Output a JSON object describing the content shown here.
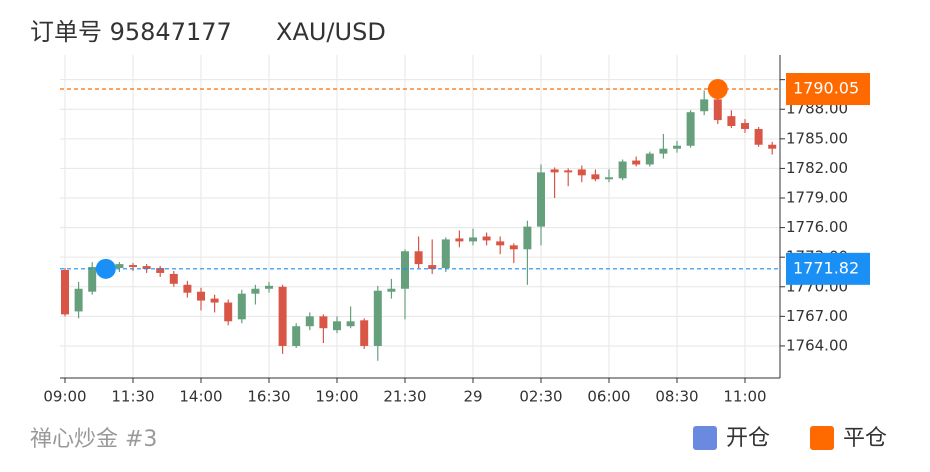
{
  "header": {
    "order": "订单号 95847177",
    "symbol": "XAU/USD"
  },
  "chart_data": {
    "type": "candlestick",
    "open": [
      1771.7,
      1767.5,
      1769.5,
      1771.8,
      1771.9,
      1772.2,
      1772.1,
      1771.9,
      1771.3,
      1770.2,
      1769.5,
      1768.8,
      1768.4,
      1766.7,
      1769.3,
      1769.8,
      1770.0,
      1764.0,
      1766.0,
      1767.0,
      1765.6,
      1766.0,
      1766.6,
      1764.0,
      1769.5,
      1769.8,
      1773.6,
      1772.2,
      1771.9,
      1774.9,
      1774.6,
      1775.1,
      1774.6,
      1774.2,
      1773.8,
      1776.1,
      1781.9,
      1781.8,
      1781.9,
      1781.4,
      1780.9,
      1781.0,
      1782.8,
      1782.4,
      1783.5,
      1784.0,
      1784.3,
      1787.8,
      1789.0,
      1787.3,
      1786.6,
      1786.0,
      1784.4
    ],
    "high": [
      1771.9,
      1770.5,
      1772.5,
      1772.6,
      1772.5,
      1772.4,
      1772.3,
      1772.1,
      1771.6,
      1770.6,
      1769.9,
      1769.2,
      1768.7,
      1769.7,
      1770.2,
      1770.5,
      1770.2,
      1766.3,
      1767.4,
      1767.2,
      1767.0,
      1768.0,
      1766.8,
      1770.1,
      1770.8,
      1773.8,
      1775.1,
      1774.8,
      1775.0,
      1775.7,
      1775.9,
      1775.5,
      1775.1,
      1774.4,
      1776.7,
      1782.4,
      1782.1,
      1782.0,
      1782.3,
      1781.9,
      1781.9,
      1782.9,
      1783.2,
      1783.7,
      1785.5,
      1784.8,
      1787.9,
      1789.9,
      1790.0,
      1787.9,
      1787.0,
      1786.2,
      1784.7
    ],
    "low": [
      1767.0,
      1766.8,
      1769.2,
      1771.4,
      1771.5,
      1771.6,
      1771.4,
      1771.0,
      1770.0,
      1768.9,
      1767.6,
      1767.4,
      1766.1,
      1766.3,
      1768.2,
      1769.4,
      1763.2,
      1763.8,
      1765.6,
      1764.3,
      1765.3,
      1765.8,
      1763.7,
      1762.5,
      1768.8,
      1766.7,
      1771.9,
      1771.3,
      1771.5,
      1774.0,
      1774.2,
      1774.2,
      1773.3,
      1772.4,
      1770.2,
      1774.2,
      1779.0,
      1780.2,
      1780.6,
      1780.7,
      1780.6,
      1780.8,
      1782.2,
      1782.2,
      1783.0,
      1783.6,
      1784.1,
      1787.4,
      1786.5,
      1786.1,
      1785.6,
      1784.2,
      1783.4
    ],
    "close": [
      1767.2,
      1769.8,
      1772.0,
      1772.2,
      1772.3,
      1772.0,
      1771.8,
      1771.4,
      1770.3,
      1769.4,
      1768.6,
      1768.4,
      1766.5,
      1769.3,
      1769.8,
      1770.1,
      1764.0,
      1766.0,
      1767.0,
      1765.8,
      1766.5,
      1766.5,
      1764.0,
      1769.6,
      1769.8,
      1773.6,
      1772.3,
      1771.8,
      1774.8,
      1774.6,
      1775.0,
      1774.7,
      1774.2,
      1773.8,
      1776.1,
      1781.6,
      1781.6,
      1781.6,
      1781.3,
      1780.9,
      1781.1,
      1782.7,
      1782.4,
      1783.5,
      1784.0,
      1784.3,
      1787.7,
      1789.0,
      1786.9,
      1786.3,
      1786.0,
      1784.4,
      1784.0
    ],
    "up_color": "#659f7c",
    "down_color": "#d95647",
    "ylim": [
      1760.75,
      1793.5
    ],
    "yticks": [
      {
        "value": 1764,
        "label": "1764.00"
      },
      {
        "value": 1767,
        "label": "1767.00"
      },
      {
        "value": 1770,
        "label": "1770.00"
      },
      {
        "value": 1773,
        "label": "1773.00"
      },
      {
        "value": 1776,
        "label": "1776.00"
      },
      {
        "value": 1779,
        "label": "1779.00"
      },
      {
        "value": 1782,
        "label": "1782.00"
      },
      {
        "value": 1785,
        "label": "1785.00"
      },
      {
        "value": 1788,
        "label": "1788.00"
      },
      {
        "value": 1791,
        "label": "1791.00"
      }
    ],
    "xticks": [
      {
        "value": 0,
        "label": "09:00"
      },
      {
        "value": 5,
        "label": "11:30"
      },
      {
        "value": 10,
        "label": "14:00"
      },
      {
        "value": 15,
        "label": "16:30"
      },
      {
        "value": 20,
        "label": "19:00"
      },
      {
        "value": 25,
        "label": "21:30"
      },
      {
        "value": 30,
        "label": "29"
      },
      {
        "value": 35,
        "label": "02:30"
      },
      {
        "value": 40,
        "label": "06:00"
      },
      {
        "value": 45,
        "label": "08:30"
      },
      {
        "value": 50,
        "label": "11:00"
      }
    ],
    "grid": true,
    "markers": [
      {
        "name": "开仓",
        "x": 3,
        "y": 1771.82,
        "color": "#1a8ff5",
        "legend_color": "#6a8ae0"
      },
      {
        "name": "平仓",
        "x": 48,
        "y": 1790.05,
        "color": "#ff6a00",
        "legend_color": "#ff6a00"
      }
    ]
  },
  "footer": {
    "source": "禅心炒金 #3"
  }
}
